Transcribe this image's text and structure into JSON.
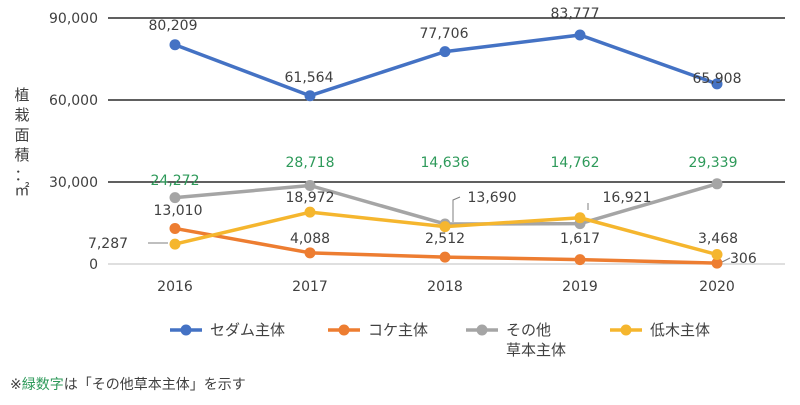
{
  "chart_data": {
    "type": "line",
    "categories": [
      "2016",
      "2017",
      "2018",
      "2019",
      "2020"
    ],
    "ylabel": "植栽面積：㎡",
    "ylim": [
      0,
      90000
    ],
    "yticks": [
      "0",
      "30,000",
      "60,000",
      "90,000"
    ],
    "ytick_values": [
      0,
      30000,
      60000,
      90000
    ],
    "grid": true,
    "legend_position": "bottom",
    "series": [
      {
        "name": "セダム主体",
        "color": "#4472c4",
        "values": [
          80209,
          61564,
          77706,
          83777,
          65908
        ],
        "labels": [
          "80,209",
          "61,564",
          "77,706",
          "83,777",
          "65,908"
        ]
      },
      {
        "name": "コケ主体",
        "color": "#ed7d31",
        "values": [
          13010,
          4088,
          2512,
          1617,
          306
        ],
        "labels": [
          "13,010",
          "4,088",
          "2,512",
          "1,617",
          "306"
        ]
      },
      {
        "name": "その他草本主体",
        "legend_lines": [
          "その他",
          "草本主体"
        ],
        "color": "#a5a5a5",
        "values": [
          24272,
          28718,
          14636,
          14762,
          29339
        ],
        "labels": [
          "24,272",
          "28,718",
          "14,636",
          "14,762",
          "29,339"
        ],
        "label_color": "#2e9a5a"
      },
      {
        "name": "低木主体",
        "color": "#f5b62e",
        "values": [
          7287,
          18972,
          13690,
          16921,
          3468
        ],
        "labels": [
          "7,287",
          "18,972",
          "13,690",
          "16,921",
          "3,468"
        ]
      }
    ]
  },
  "footnote": {
    "prefix": "※",
    "green": "緑数字",
    "suffix": "は「その他草本主体」を示す"
  }
}
